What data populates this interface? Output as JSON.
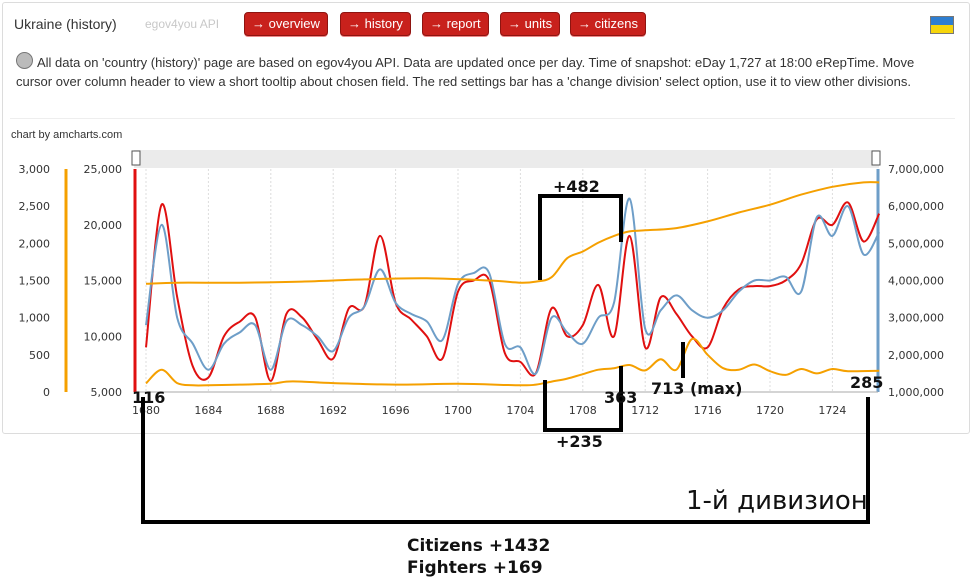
{
  "header": {
    "title": "Ukraine (history)",
    "api_label": "egov4you API",
    "buttons": [
      "→ overview",
      "→ history",
      "→ report",
      "→ units",
      "→ citizens"
    ]
  },
  "info_text": "All data on 'country (history)' page are based on egov4you API. Data are updated once per day. Time of snapshot: eDay 1,727 at 18:00 eRepTime. Move cursor over column header to view a short tooltip about chosen field. The red settings bar has a 'change division' select option, use it to view other divisions.",
  "credit": "chart by amcharts.com",
  "colors": {
    "accent_red": "#c8211c",
    "series_red": "#e01010",
    "series_orange": "#f5a000",
    "series_blue": "#6e9ec8",
    "flag_blue": "#2e7ed1",
    "flag_yellow": "#f6d50b"
  },
  "chart_data": {
    "type": "line",
    "x_ticks": [
      "1680",
      "1684",
      "1688",
      "1692",
      "1696",
      "1700",
      "1704",
      "1708",
      "1712",
      "1716",
      "1720",
      "1724"
    ],
    "xlim": [
      1680,
      1727
    ],
    "axes": {
      "left_orange": {
        "ylim": [
          0,
          3000
        ],
        "ticks": [
          "0",
          "500",
          "1,000",
          "1,500",
          "2,000",
          "2,500",
          "3,000"
        ]
      },
      "left_red": {
        "ylim": [
          5000,
          25000
        ],
        "ticks": [
          "5,000",
          "10,000",
          "15,000",
          "20,000",
          "25,000"
        ]
      },
      "right_blue": {
        "ylim": [
          1000000,
          7000000
        ],
        "ticks": [
          "1,000,000",
          "2,000,000",
          "3,000,000",
          "4,000,000",
          "5,000,000",
          "6,000,000",
          "7,000,000"
        ]
      }
    },
    "grid": "vertical dashed",
    "series": [
      {
        "color": "#e01010",
        "axis": "left_red",
        "x": [
          1680,
          1681,
          1682,
          1683,
          1684,
          1685,
          1686,
          1687,
          1688,
          1689,
          1690,
          1691,
          1692,
          1693,
          1694,
          1695,
          1696,
          1697,
          1698,
          1699,
          1700,
          1701,
          1702,
          1703,
          1704,
          1705,
          1706,
          1707,
          1708,
          1709,
          1710,
          1711,
          1712,
          1713,
          1714,
          1715,
          1716,
          1717,
          1718,
          1719,
          1720,
          1721,
          1722,
          1723,
          1724,
          1725,
          1726,
          1727
        ],
        "y": [
          9000,
          21800,
          13500,
          7300,
          6300,
          10000,
          11300,
          11700,
          6000,
          12000,
          11700,
          9700,
          8000,
          12500,
          12700,
          19000,
          13000,
          11500,
          10000,
          8000,
          14000,
          15000,
          15000,
          8500,
          7700,
          6700,
          12500,
          10000,
          11000,
          14600,
          10000,
          19000,
          9000,
          13500,
          12000,
          10000,
          9000,
          12500,
          14200,
          14500,
          14500,
          15000,
          16500,
          20500,
          20000,
          22000,
          18500,
          21000
        ]
      },
      {
        "color": "#6e9ec8",
        "axis": "right_blue",
        "x": [
          1680,
          1681,
          1682,
          1683,
          1684,
          1685,
          1686,
          1687,
          1688,
          1689,
          1690,
          1691,
          1692,
          1693,
          1694,
          1695,
          1696,
          1697,
          1698,
          1699,
          1700,
          1701,
          1702,
          1703,
          1704,
          1705,
          1706,
          1707,
          1708,
          1709,
          1710,
          1711,
          1712,
          1713,
          1714,
          1715,
          1716,
          1717,
          1718,
          1719,
          1720,
          1721,
          1722,
          1723,
          1724,
          1725,
          1726,
          1727
        ],
        "y": [
          2800000,
          5500000,
          3000000,
          2300000,
          1600000,
          2300000,
          2600000,
          2800000,
          1600000,
          2900000,
          2800000,
          2500000,
          2100000,
          3000000,
          3300000,
          4300000,
          3400000,
          3100000,
          2900000,
          2400000,
          3900000,
          4200000,
          4200000,
          2300000,
          2200000,
          1500000,
          3000000,
          2600000,
          2300000,
          3000000,
          3400000,
          6200000,
          2700000,
          3200000,
          3600000,
          3200000,
          3000000,
          3200000,
          3700000,
          4000000,
          4000000,
          4100000,
          3700000,
          5700000,
          5200000,
          6000000,
          4700000,
          5300000
        ]
      },
      {
        "color": "#f5a000",
        "axis": "left_red",
        "x": [
          1680,
          1682,
          1686,
          1690,
          1694,
          1698,
          1702,
          1704,
          1705,
          1706,
          1707,
          1708,
          1709,
          1710,
          1711,
          1712,
          1714,
          1716,
          1718,
          1720,
          1722,
          1724,
          1726,
          1727
        ],
        "y": [
          14700,
          14800,
          14800,
          14900,
          15100,
          15200,
          15000,
          14800,
          14900,
          15300,
          17000,
          17600,
          18400,
          19000,
          19400,
          19500,
          19700,
          20300,
          21100,
          21800,
          22700,
          23400,
          23800,
          23800
        ]
      },
      {
        "color": "#f5a000",
        "axis": "left_orange",
        "x": [
          1680,
          1681,
          1682,
          1683,
          1684,
          1686,
          1688,
          1689,
          1690,
          1692,
          1696,
          1700,
          1704,
          1705,
          1706,
          1707,
          1708,
          1709,
          1710,
          1711,
          1712,
          1713,
          1714,
          1715,
          1716,
          1717,
          1718,
          1719,
          1720,
          1721,
          1722,
          1723,
          1724,
          1725,
          1727
        ],
        "y": [
          116,
          300,
          120,
          90,
          90,
          100,
          110,
          140,
          140,
          120,
          100,
          110,
          90,
          100,
          140,
          180,
          240,
          300,
          320,
          363,
          290,
          440,
          300,
          713,
          500,
          320,
          300,
          370,
          280,
          230,
          310,
          250,
          310,
          280,
          285
        ]
      }
    ],
    "annotations": {
      "citizens_delta": "+482",
      "fighters_delta": "+235",
      "start_fighters": "116",
      "mid_fighters": "363",
      "max_fighters": "713 (max)",
      "end_fighters": "285",
      "division_label": "1-й дивизион",
      "summary_citizens": "Citizens +1432",
      "summary_fighters": "Fighters +169"
    }
  }
}
